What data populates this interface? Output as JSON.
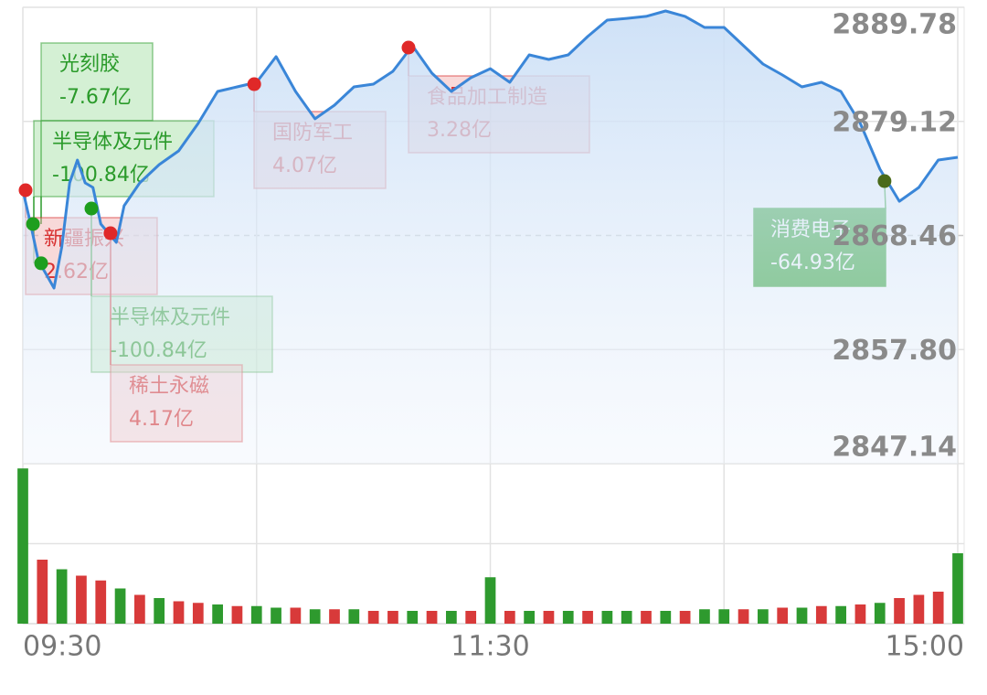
{
  "chart_data": {
    "type": "line",
    "x": [
      0,
      2,
      4,
      6,
      8,
      10,
      12,
      14,
      16,
      18,
      20,
      22,
      24,
      26,
      30,
      35,
      40,
      45,
      50,
      55,
      60,
      65,
      70,
      75,
      80,
      85,
      90,
      95,
      100,
      105,
      110,
      115,
      120,
      125,
      130,
      135,
      140,
      145,
      150,
      155,
      160,
      165,
      170,
      175,
      180,
      185,
      190,
      195,
      200,
      205,
      210,
      215,
      220,
      225,
      230,
      235,
      240
    ],
    "series": [
      {
        "color": "#3a86d8",
        "values": [
          2872.69,
          2869.53,
          2866.11,
          2864.83,
          2863.55,
          2867.39,
          2873.37,
          2875.51,
          2873.37,
          2872.95,
          2869.53,
          2868.67,
          2867.82,
          2871.24,
          2873.37,
          2875.08,
          2876.36,
          2878.93,
          2881.92,
          2882.35,
          2882.77,
          2885.17,
          2881.92,
          2879.36,
          2880.64,
          2882.35,
          2882.6,
          2883.8,
          2886.19,
          2883.63,
          2881.92,
          2883.2,
          2884.05,
          2882.77,
          2885.34,
          2884.91,
          2885.34,
          2887.05,
          2888.58,
          2888.75,
          2888.93,
          2889.44,
          2888.93,
          2887.9,
          2887.9,
          2886.19,
          2884.48,
          2883.46,
          2882.35,
          2882.77,
          2881.92,
          2878.93,
          2874.66,
          2871.66,
          2872.95,
          2875.51,
          2875.77
        ]
      }
    ],
    "xlim": [
      0,
      240
    ],
    "xticks": [
      {
        "value": 0,
        "label": "09:30"
      },
      {
        "value": 60,
        "label": null
      },
      {
        "value": 120,
        "label": "11:30"
      },
      {
        "value": 180,
        "label": null
      },
      {
        "value": 240,
        "label": "15:00"
      }
    ],
    "ylim": [
      2847.14,
      2889.78
    ],
    "yticks": [
      {
        "value": 2889.78,
        "label": "2889.78"
      },
      {
        "value": 2879.12,
        "label": "2879.12"
      },
      {
        "value": 2868.46,
        "label": "2868.46"
      },
      {
        "value": 2857.8,
        "label": "2857.80"
      },
      {
        "value": 2847.14,
        "label": "2847.14"
      }
    ],
    "grid": true,
    "volume": {
      "type": "bar",
      "x": [
        0,
        5,
        10,
        15,
        20,
        25,
        30,
        35,
        40,
        45,
        50,
        55,
        60,
        65,
        70,
        75,
        80,
        85,
        90,
        95,
        100,
        105,
        110,
        115,
        120,
        125,
        130,
        135,
        140,
        145,
        150,
        155,
        160,
        165,
        170,
        175,
        180,
        185,
        190,
        195,
        200,
        205,
        210,
        215,
        220,
        225,
        230,
        235,
        240
      ],
      "values": [
        97,
        40,
        34,
        30,
        27,
        22,
        18,
        16,
        14,
        13,
        12,
        11,
        11,
        10,
        10,
        9,
        9,
        9,
        8,
        8,
        8,
        8,
        8,
        8,
        29,
        8,
        8,
        8,
        8,
        8,
        8,
        8,
        8,
        8,
        8,
        9,
        9,
        9,
        9,
        10,
        10,
        11,
        11,
        12,
        13,
        16,
        18,
        20,
        44
      ],
      "colors": [
        "#2e9a2e",
        "#d83a3a",
        "#2e9a2e",
        "#d83a3a",
        "#d83a3a",
        "#2e9a2e",
        "#d83a3a",
        "#2e9a2e",
        "#d83a3a",
        "#d83a3a",
        "#2e9a2e",
        "#d83a3a",
        "#2e9a2e",
        "#2e9a2e",
        "#d83a3a",
        "#2e9a2e",
        "#d83a3a",
        "#2e9a2e",
        "#d83a3a",
        "#d83a3a",
        "#2e9a2e",
        "#d83a3a",
        "#2e9a2e",
        "#d83a3a",
        "#2e9a2e",
        "#d83a3a",
        "#2e9a2e",
        "#d83a3a",
        "#2e9a2e",
        "#d83a3a",
        "#2e9a2e",
        "#2e9a2e",
        "#d83a3a",
        "#2e9a2e",
        "#d83a3a",
        "#2e9a2e",
        "#2e9a2e",
        "#d83a3a",
        "#2e9a2e",
        "#d83a3a",
        "#2e9a2e",
        "#d83a3a",
        "#2e9a2e",
        "#d83a3a",
        "#2e9a2e",
        "#d83a3a",
        "#d83a3a",
        "#d83a3a",
        "#2e9a2e"
      ],
      "ylim": [
        0,
        100
      ],
      "gridlines": [
        50
      ]
    },
    "annotations": [
      {
        "label": "光刻胶",
        "amount": "-7.67亿",
        "minute": 2.6,
        "price": 2869.53,
        "color": "#2a9a2a"
      },
      {
        "label": "半导体及元件",
        "amount": "-100.84亿",
        "minute": 4.7,
        "price": 2865.86,
        "color": "#2a9a2a"
      },
      {
        "label": "新疆振兴",
        "amount": "2.62亿",
        "minute": 0.7,
        "price": 2872.69,
        "color": "#d83030"
      },
      {
        "label": "半导体及元件",
        "amount": "-100.84亿",
        "minute": 17.6,
        "price": 2870.98,
        "color": "#2a9a2a"
      },
      {
        "label": "稀土永磁",
        "amount": "4.17亿",
        "minute": 22.5,
        "price": 2868.67,
        "color": "#d83030"
      },
      {
        "label": "国防军工",
        "amount": "4.07亿",
        "minute": 59.4,
        "price": 2882.6,
        "color": "#d83030"
      },
      {
        "label": "食品加工制造",
        "amount": "3.28亿",
        "minute": 99,
        "price": 2886.02,
        "color": "#d83030"
      },
      {
        "label": "消费电子",
        "amount": "-64.93亿",
        "minute": 221.2,
        "price": 2873.54,
        "color": "#1a9a1a",
        "highlight": true
      }
    ]
  }
}
